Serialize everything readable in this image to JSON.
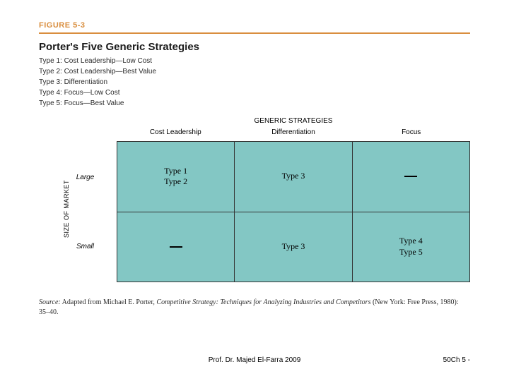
{
  "figure_label": "FIGURE 5-3",
  "title": "Porter's Five Generic Strategies",
  "types": [
    "Type 1: Cost Leadership—Low Cost",
    "Type 2: Cost Leadership—Best Value",
    "Type 3: Differentiation",
    "Type 4: Focus—Low Cost",
    "Type 5: Focus—Best Value"
  ],
  "matrix": {
    "top_label": "GENERIC STRATEGIES",
    "col_headers": [
      "Cost Leadership",
      "Differentiation",
      "Focus"
    ],
    "y_axis_label": "SIZE OF MARKET",
    "row_labels": [
      "Large",
      "Small"
    ],
    "cell_bg": "#83c7c4",
    "border_color": "#333333",
    "cells": {
      "r0c0": [
        "Type 1",
        "Type 2"
      ],
      "r0c1": [
        "Type 3"
      ],
      "r0c2": [],
      "r1c0": [],
      "r1c1": [
        "Type 3"
      ],
      "r1c2": [
        "Type 4",
        "Type 5"
      ]
    }
  },
  "source_prefix": "Source:",
  "source_text": " Adapted from Michael E. Porter, ",
  "source_italic": "Competitive Strategy: Techniques for Analyzing Industries and Competitors",
  "source_suffix": " (New York: Free Press, 1980): 35–40.",
  "footer_left": "Prof. Dr. Majed El-Farra 2009",
  "footer_right": "50Ch 5 -",
  "colors": {
    "accent": "#d98e3e",
    "text": "#1a1a1a",
    "background": "#ffffff"
  }
}
